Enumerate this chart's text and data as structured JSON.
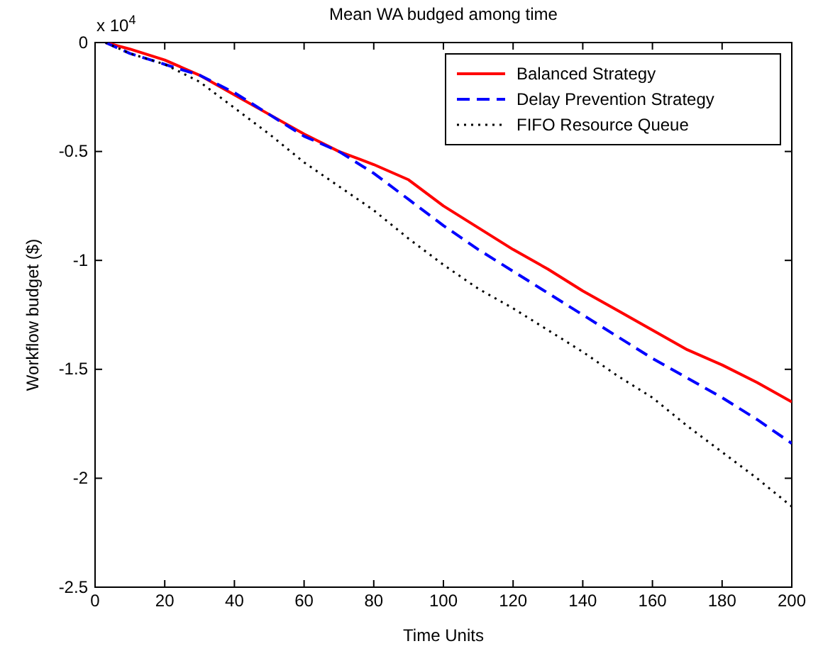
{
  "chart_data": {
    "type": "line",
    "title": "Mean WA budged among time",
    "xlabel": "Time Units",
    "ylabel": "Workflow budget ($)",
    "annotations": [
      "x 10$^{4}$"
    ],
    "x": [
      3,
      10,
      20,
      30,
      40,
      50,
      60,
      70,
      80,
      90,
      100,
      110,
      120,
      130,
      140,
      150,
      160,
      170,
      180,
      190,
      200
    ],
    "xlim": [
      0,
      200
    ],
    "xticks": [
      0,
      20,
      40,
      60,
      80,
      100,
      120,
      140,
      160,
      180,
      200
    ],
    "ylim": [
      -2.5,
      0
    ],
    "yticks": [
      -2.5,
      -2,
      -1.5,
      -1,
      -0.5,
      0
    ],
    "grid": false,
    "legend": "top right",
    "series": [
      {
        "name": "Balanced Strategy",
        "color": "#ff0000",
        "line_style": "solid",
        "values": [
          0,
          -0.03,
          -0.08,
          -0.15,
          -0.24,
          -0.33,
          -0.42,
          -0.5,
          -0.56,
          -0.63,
          -0.75,
          -0.85,
          -0.95,
          -1.04,
          -1.14,
          -1.23,
          -1.32,
          -1.41,
          -1.48,
          -1.56,
          -1.65
        ]
      },
      {
        "name": "Delay Prevention Strategy",
        "color": "#0000ff",
        "line_style": "dashed",
        "values": [
          0,
          -0.05,
          -0.1,
          -0.15,
          -0.23,
          -0.33,
          -0.43,
          -0.5,
          -0.6,
          -0.72,
          -0.84,
          -0.95,
          -1.05,
          -1.15,
          -1.25,
          -1.35,
          -1.45,
          -1.54,
          -1.63,
          -1.73,
          -1.84
        ]
      },
      {
        "name": "FIFO Resource Queue",
        "color": "#000000",
        "line_style": "dotted",
        "values": [
          0,
          -0.05,
          -0.1,
          -0.18,
          -0.3,
          -0.42,
          -0.55,
          -0.66,
          -0.77,
          -0.9,
          -1.02,
          -1.13,
          -1.22,
          -1.32,
          -1.42,
          -1.53,
          -1.63,
          -1.76,
          -1.88,
          -2.0,
          -2.13
        ]
      }
    ]
  }
}
